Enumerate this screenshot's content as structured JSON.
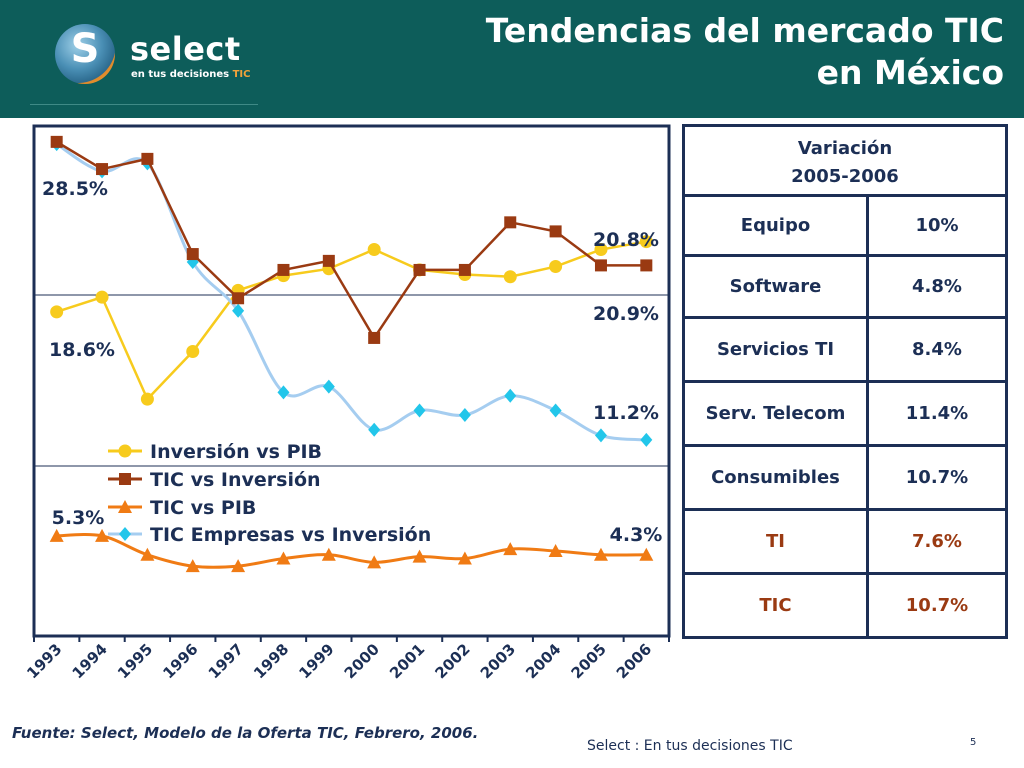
{
  "header": {
    "title_line1": "Tendencias del mercado TIC",
    "title_line2": "en México",
    "logo_text": "select",
    "logo_tagline": "en tus decisiones",
    "logo_tagline_tic": "TIC",
    "logo_letter": "S"
  },
  "colors": {
    "header_bg": "#0d5d5a",
    "navy": "#1c2f55",
    "yellow": "#f7cb1d",
    "rust": "#9a3a12",
    "orange": "#f07b14",
    "lightblue": "#a5cdf0",
    "cyan": "#22c6ea"
  },
  "chart_data": {
    "type": "line",
    "categories": [
      "1993",
      "1994",
      "1995",
      "1996",
      "1997",
      "1998",
      "1999",
      "2000",
      "2001",
      "2002",
      "2003",
      "2004",
      "2005",
      "2006"
    ],
    "series": [
      {
        "name": "Inversión vs PIB",
        "values": [
          18.6,
          19.9,
          10.9,
          15.1,
          20.5,
          21.8,
          22.4,
          24.1,
          22.3,
          21.9,
          21.7,
          22.6,
          24.1,
          24.8
        ]
      },
      {
        "name": "TIC  vs Inversión",
        "values": [
          33.6,
          31.2,
          32.1,
          23.7,
          19.8,
          22.3,
          23.1,
          16.3,
          22.3,
          22.3,
          26.5,
          25.7,
          22.7,
          22.7
        ]
      },
      {
        "name": "TIC  vs PIB",
        "values": [
          5.3,
          5.3,
          4.3,
          3.7,
          3.7,
          4.1,
          4.3,
          3.9,
          4.2,
          4.1,
          4.6,
          4.5,
          4.3,
          4.3
        ]
      },
      {
        "name": "TIC Empresas vs Inversión",
        "values": [
          33.4,
          31.0,
          31.7,
          23.0,
          18.7,
          11.5,
          12.0,
          8.2,
          9.9,
          9.5,
          11.2,
          9.9,
          7.7,
          7.3
        ]
      }
    ],
    "annotations": [
      "28.5%",
      "18.6%",
      "5.3%",
      "20.8%",
      "20.9%",
      "11.2%",
      "4.3%"
    ],
    "legend_position": "lower-left"
  },
  "table": {
    "header_line1": "Variación",
    "header_line2": "2005-2006",
    "rows": [
      {
        "label": "Equipo",
        "value": "10%"
      },
      {
        "label": "Software",
        "value": "4.8%"
      },
      {
        "label": "Servicios TI",
        "value": "8.4%"
      },
      {
        "label": "Serv. Telecom",
        "value": "11.4%"
      },
      {
        "label": "Consumibles",
        "value": "10.7%"
      },
      {
        "label": "TI",
        "value": "7.6%"
      },
      {
        "label": "TIC",
        "value": "10.7%"
      }
    ]
  },
  "source": "Fuente: Select, Modelo de la Oferta TIC, Febrero, 2006.",
  "footer": "Select  : En tus decisiones TIC",
  "page_number": "5"
}
